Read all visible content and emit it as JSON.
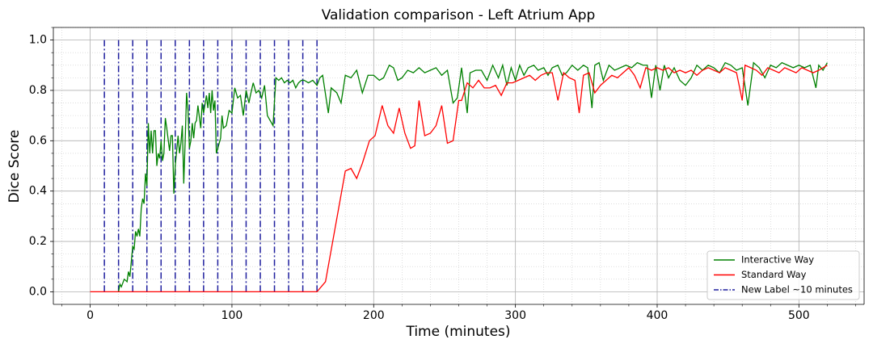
{
  "chart_data": {
    "type": "line",
    "title": "Validation comparison - Left Atrium App",
    "xlabel": "Time (minutes)",
    "ylabel": "Dice Score",
    "xlim": [
      -26,
      546
    ],
    "ylim": [
      -0.05,
      1.05
    ],
    "xticks": [
      0,
      100,
      200,
      300,
      400,
      500
    ],
    "yticks": [
      {
        "value": 0,
        "label": "0.0"
      },
      {
        "value": 0.2,
        "label": "0.2"
      },
      {
        "value": 0.4,
        "label": "0.4"
      },
      {
        "value": 0.6,
        "label": "0.6"
      },
      {
        "value": 0.8,
        "label": "0.8"
      },
      {
        "value": 1,
        "label": "1.0"
      }
    ],
    "xminorticks": [
      -20,
      20,
      40,
      60,
      80,
      120,
      140,
      160,
      180,
      220,
      240,
      260,
      280,
      320,
      340,
      360,
      380,
      420,
      440,
      460,
      480,
      520,
      540
    ],
    "yminorticks": [
      0.05,
      0.1,
      0.15,
      0.25,
      0.3,
      0.35,
      0.45,
      0.5,
      0.55,
      0.65,
      0.7,
      0.75,
      0.85,
      0.9,
      0.95,
      1.05
    ],
    "grid": true,
    "minor_grid": true,
    "legend": "lower right",
    "series": [
      {
        "name": "Interactive Way",
        "color": "#008000",
        "x": [
          20,
          21,
          22,
          24,
          26,
          27,
          28,
          29,
          30,
          31,
          32,
          33,
          34,
          35,
          36,
          37,
          38,
          39,
          40,
          41,
          42,
          43,
          44,
          45,
          46,
          47,
          48,
          49,
          50,
          51,
          52,
          53,
          54,
          56,
          57,
          58,
          59,
          60,
          62,
          63,
          64,
          65,
          66,
          67,
          68,
          69,
          70,
          71,
          72,
          73,
          74,
          75,
          76,
          78,
          79,
          80,
          82,
          83,
          84,
          85,
          86,
          87,
          88,
          89,
          90,
          92,
          93,
          94,
          96,
          98,
          100,
          102,
          104,
          106,
          108,
          110,
          112,
          113,
          115,
          117,
          119,
          121,
          123,
          125,
          127,
          129,
          131,
          133,
          135,
          137,
          139,
          141,
          143,
          145,
          147,
          149,
          151,
          154,
          157,
          160,
          162,
          164,
          168,
          170,
          174,
          177,
          180,
          184,
          188,
          192,
          196,
          200,
          204,
          207,
          211,
          214,
          217,
          220,
          224,
          228,
          232,
          236,
          240,
          244,
          248,
          252,
          256,
          259,
          262,
          266,
          268,
          272,
          276,
          280,
          284,
          288,
          291,
          294,
          297,
          300,
          303,
          306,
          309,
          313,
          316,
          320,
          323,
          326,
          330,
          333,
          336,
          340,
          344,
          348,
          351,
          354,
          356,
          359,
          362,
          366,
          370,
          374,
          378,
          382,
          386,
          390,
          393,
          396,
          399,
          402,
          405,
          408,
          412,
          416,
          420,
          424,
          428,
          432,
          436,
          440,
          444,
          448,
          452,
          456,
          460,
          464,
          468,
          472,
          476,
          480,
          484,
          488,
          492,
          496,
          500,
          504,
          508,
          512,
          514,
          517,
          520
        ],
        "values": [
          0.0,
          0.03,
          0.02,
          0.05,
          0.04,
          0.08,
          0.06,
          0.12,
          0.18,
          0.17,
          0.24,
          0.22,
          0.25,
          0.22,
          0.33,
          0.37,
          0.35,
          0.47,
          0.42,
          0.67,
          0.55,
          0.64,
          0.55,
          0.64,
          0.64,
          0.5,
          0.55,
          0.53,
          0.6,
          0.52,
          0.55,
          0.69,
          0.65,
          0.56,
          0.62,
          0.62,
          0.39,
          0.5,
          0.62,
          0.55,
          0.59,
          0.66,
          0.43,
          0.6,
          0.79,
          0.72,
          0.57,
          0.6,
          0.67,
          0.61,
          0.67,
          0.68,
          0.74,
          0.65,
          0.75,
          0.71,
          0.78,
          0.73,
          0.79,
          0.71,
          0.8,
          0.72,
          0.76,
          0.55,
          0.57,
          0.61,
          0.7,
          0.65,
          0.66,
          0.72,
          0.71,
          0.81,
          0.77,
          0.78,
          0.7,
          0.8,
          0.75,
          0.78,
          0.83,
          0.79,
          0.8,
          0.77,
          0.82,
          0.7,
          0.68,
          0.66,
          0.85,
          0.84,
          0.85,
          0.83,
          0.84,
          0.83,
          0.84,
          0.81,
          0.83,
          0.84,
          0.84,
          0.83,
          0.84,
          0.82,
          0.85,
          0.86,
          0.71,
          0.81,
          0.79,
          0.75,
          0.86,
          0.85,
          0.88,
          0.79,
          0.86,
          0.86,
          0.84,
          0.85,
          0.9,
          0.89,
          0.84,
          0.85,
          0.88,
          0.87,
          0.89,
          0.87,
          0.88,
          0.89,
          0.86,
          0.88,
          0.75,
          0.77,
          0.89,
          0.71,
          0.87,
          0.88,
          0.88,
          0.84,
          0.9,
          0.85,
          0.9,
          0.82,
          0.89,
          0.84,
          0.9,
          0.86,
          0.89,
          0.9,
          0.88,
          0.89,
          0.86,
          0.89,
          0.9,
          0.86,
          0.87,
          0.9,
          0.88,
          0.9,
          0.89,
          0.73,
          0.9,
          0.91,
          0.84,
          0.9,
          0.88,
          0.89,
          0.9,
          0.89,
          0.91,
          0.9,
          0.9,
          0.77,
          0.9,
          0.8,
          0.9,
          0.85,
          0.89,
          0.84,
          0.82,
          0.85,
          0.9,
          0.88,
          0.9,
          0.89,
          0.87,
          0.91,
          0.9,
          0.88,
          0.89,
          0.74,
          0.91,
          0.89,
          0.85,
          0.9,
          0.89,
          0.91,
          0.9,
          0.89,
          0.9,
          0.89,
          0.9,
          0.81,
          0.9,
          0.88,
          0.91
        ]
      },
      {
        "name": "Standard Way",
        "color": "#ff0000",
        "x": [
          0,
          160,
          166,
          180,
          184,
          188,
          192,
          197,
          201,
          206,
          210,
          214,
          218,
          222,
          226,
          229,
          232,
          236,
          240,
          244,
          248,
          252,
          256,
          260,
          262,
          266,
          270,
          274,
          278,
          282,
          286,
          290,
          294,
          298,
          302,
          306,
          310,
          314,
          318,
          322,
          326,
          330,
          334,
          338,
          342,
          345,
          348,
          352,
          356,
          360,
          364,
          368,
          372,
          376,
          380,
          384,
          388,
          392,
          396,
          400,
          404,
          408,
          412,
          416,
          420,
          424,
          428,
          432,
          436,
          440,
          444,
          448,
          452,
          456,
          460,
          462,
          466,
          470,
          474,
          478,
          482,
          486,
          490,
          494,
          498,
          502,
          506,
          510,
          514,
          520
        ],
        "values": [
          0,
          0,
          0.04,
          0.48,
          0.49,
          0.45,
          0.51,
          0.6,
          0.62,
          0.74,
          0.66,
          0.63,
          0.73,
          0.63,
          0.57,
          0.58,
          0.76,
          0.62,
          0.63,
          0.66,
          0.74,
          0.59,
          0.6,
          0.76,
          0.76,
          0.83,
          0.81,
          0.84,
          0.81,
          0.81,
          0.82,
          0.78,
          0.83,
          0.83,
          0.84,
          0.85,
          0.86,
          0.84,
          0.86,
          0.87,
          0.87,
          0.76,
          0.87,
          0.85,
          0.84,
          0.71,
          0.86,
          0.87,
          0.79,
          0.82,
          0.84,
          0.86,
          0.85,
          0.87,
          0.89,
          0.86,
          0.81,
          0.89,
          0.88,
          0.89,
          0.88,
          0.89,
          0.87,
          0.88,
          0.87,
          0.88,
          0.86,
          0.88,
          0.89,
          0.88,
          0.87,
          0.89,
          0.88,
          0.87,
          0.76,
          0.9,
          0.89,
          0.88,
          0.86,
          0.89,
          0.88,
          0.87,
          0.89,
          0.88,
          0.87,
          0.89,
          0.88,
          0.87,
          0.88,
          0.9
        ]
      }
    ],
    "vlines": {
      "name": "New Label ~10 minutes",
      "color": "#1f1f9e",
      "x": [
        10,
        20,
        30,
        40,
        50,
        60,
        70,
        80,
        90,
        100,
        110,
        120,
        130,
        140,
        150,
        160
      ],
      "ymin": 0,
      "ymax": 1
    }
  }
}
